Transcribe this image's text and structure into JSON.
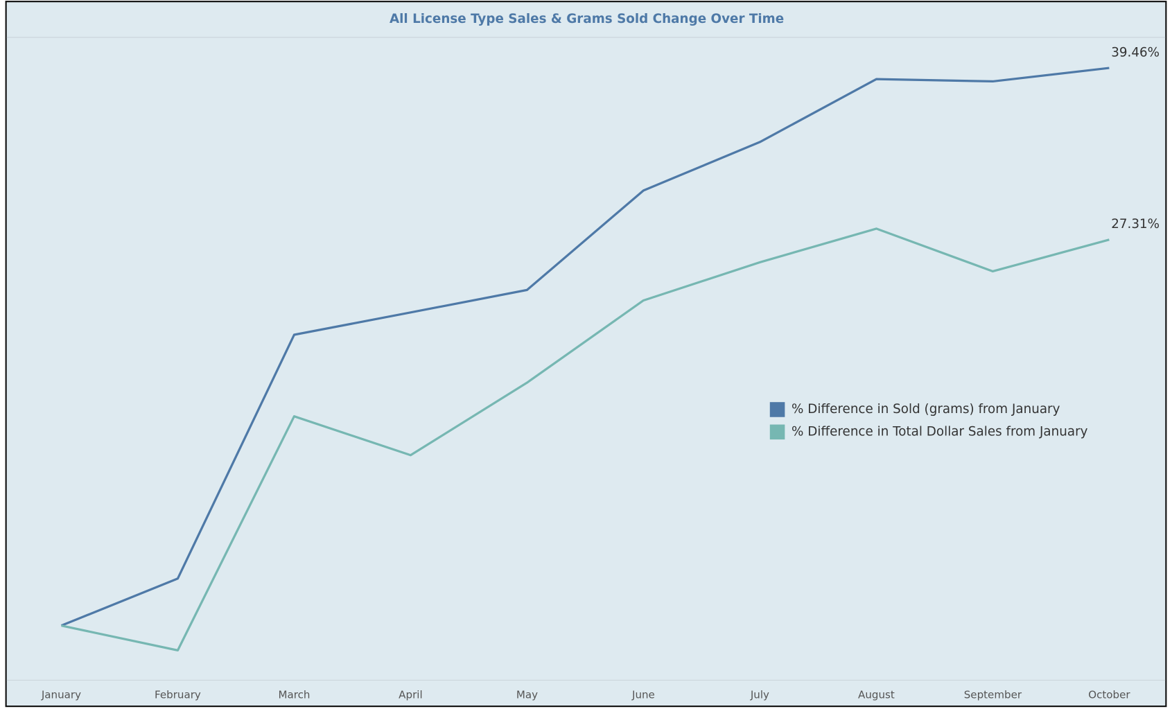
{
  "chart_data": {
    "type": "line",
    "title": "All License Type  Sales & Grams Sold Change Over Time",
    "categories": [
      "January",
      "February",
      "March",
      "April",
      "May",
      "June",
      "July",
      "August",
      "September",
      "October"
    ],
    "series": [
      {
        "name": "% Difference in Sold (grams) from January",
        "color": "#4e79a7",
        "values": [
          0,
          3.33,
          20.58,
          22.16,
          23.75,
          30.79,
          34.22,
          38.67,
          38.51,
          39.46
        ],
        "value_labels": [
          null,
          null,
          null,
          null,
          null,
          null,
          null,
          null,
          null,
          "39.46%"
        ]
      },
      {
        "name": "% Difference in Total Dollar Sales from January",
        "color": "#76b7b2",
        "values": [
          0,
          -1.75,
          14.81,
          12.06,
          17.19,
          23.01,
          25.71,
          28.09,
          25.07,
          27.31
        ],
        "value_labels": [
          null,
          null,
          null,
          null,
          null,
          null,
          null,
          null,
          null,
          "27.31%"
        ]
      }
    ],
    "ylim": [
      -3.86,
      41.73
    ],
    "legend": "right"
  }
}
